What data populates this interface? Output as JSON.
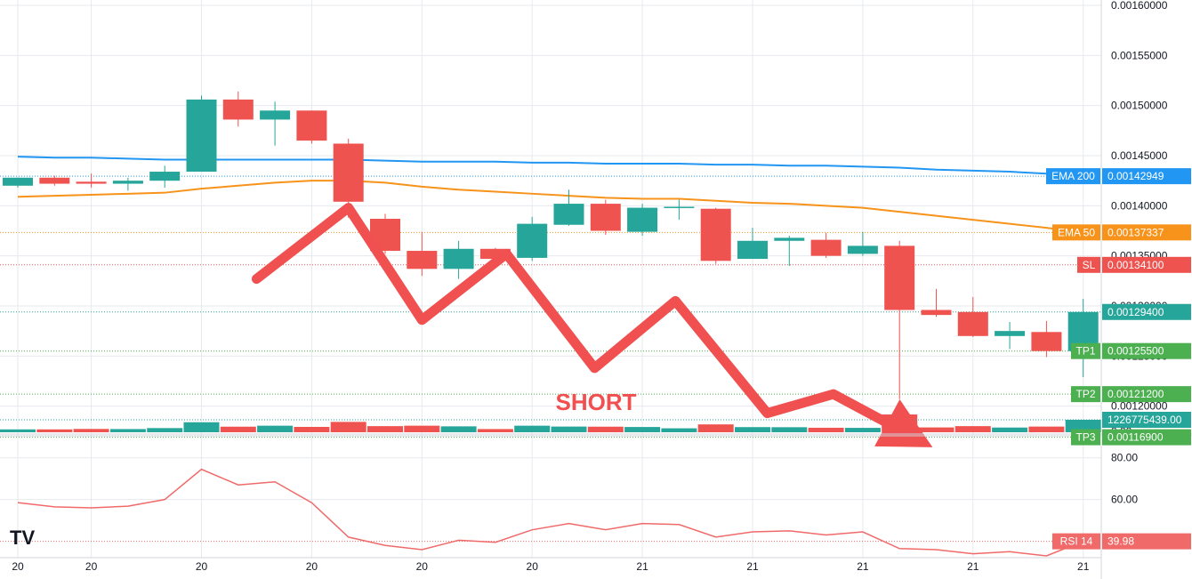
{
  "colors": {
    "up": "#26a69a",
    "down": "#ef5350",
    "ema200": "#2196f3",
    "ema50": "#f7931a",
    "sl": "#ef5350",
    "tp": "#4caf50",
    "last_price": "#26a69a",
    "rsi": "#f06a6a",
    "arrow": "#f05050",
    "grid": "#e6e9ee"
  },
  "watermark": "TV",
  "chart_data": {
    "type": "candlestick",
    "price_axis": {
      "ylim": [
        0.00115,
        0.0016
      ],
      "ticks": [
        "0.00160000",
        "0.00155000",
        "0.00150000",
        "0.00145000",
        "0.00140000",
        "0.00135000",
        "0.00130000",
        "0.00125000",
        "0.00120000"
      ]
    },
    "time_axis": {
      "tick_indices": [
        0,
        2,
        5,
        8,
        11,
        14,
        17,
        20,
        23,
        26,
        29
      ],
      "tick_labels": [
        "20",
        "20",
        "20",
        "20",
        "20",
        "20",
        "21",
        "21",
        "21",
        "21",
        "21"
      ]
    },
    "candles": [
      {
        "o": 0.00142,
        "h": 0.001428,
        "l": 0.001418,
        "c": 0.001428
      },
      {
        "o": 0.001428,
        "h": 0.00143,
        "l": 0.00142,
        "c": 0.001422
      },
      {
        "o": 0.001424,
        "h": 0.001432,
        "l": 0.001418,
        "c": 0.001422
      },
      {
        "o": 0.001422,
        "h": 0.001428,
        "l": 0.001415,
        "c": 0.001425
      },
      {
        "o": 0.001425,
        "h": 0.00144,
        "l": 0.001418,
        "c": 0.001434
      },
      {
        "o": 0.001434,
        "h": 0.00151,
        "l": 0.001434,
        "c": 0.001506
      },
      {
        "o": 0.001506,
        "h": 0.001514,
        "l": 0.001479,
        "c": 0.001486
      },
      {
        "o": 0.001486,
        "h": 0.001504,
        "l": 0.00146,
        "c": 0.001495
      },
      {
        "o": 0.001495,
        "h": 0.001495,
        "l": 0.001462,
        "c": 0.001465
      },
      {
        "o": 0.001462,
        "h": 0.001467,
        "l": 0.001388,
        "c": 0.001404
      },
      {
        "o": 0.001387,
        "h": 0.001392,
        "l": 0.001352,
        "c": 0.001355
      },
      {
        "o": 0.001355,
        "h": 0.001374,
        "l": 0.00133,
        "c": 0.001337
      },
      {
        "o": 0.001337,
        "h": 0.001365,
        "l": 0.001327,
        "c": 0.001357
      },
      {
        "o": 0.001357,
        "h": 0.001358,
        "l": 0.001345,
        "c": 0.001347
      },
      {
        "o": 0.001348,
        "h": 0.001389,
        "l": 0.001345,
        "c": 0.001382
      },
      {
        "o": 0.001381,
        "h": 0.001416,
        "l": 0.00138,
        "c": 0.001402
      },
      {
        "o": 0.001402,
        "h": 0.001406,
        "l": 0.001371,
        "c": 0.001375
      },
      {
        "o": 0.001374,
        "h": 0.001402,
        "l": 0.00137,
        "c": 0.001398
      },
      {
        "o": 0.001398,
        "h": 0.001406,
        "l": 0.001386,
        "c": 0.001399
      },
      {
        "o": 0.001397,
        "h": 0.001398,
        "l": 0.001342,
        "c": 0.001345
      },
      {
        "o": 0.001347,
        "h": 0.001378,
        "l": 0.001347,
        "c": 0.001365
      },
      {
        "o": 0.001365,
        "h": 0.00137,
        "l": 0.00134,
        "c": 0.001368
      },
      {
        "o": 0.001366,
        "h": 0.001373,
        "l": 0.001348,
        "c": 0.00135
      },
      {
        "o": 0.001352,
        "h": 0.001374,
        "l": 0.00135,
        "c": 0.00136
      },
      {
        "o": 0.00136,
        "h": 0.001365,
        "l": 0.001207,
        "c": 0.001296
      },
      {
        "o": 0.001296,
        "h": 0.001317,
        "l": 0.001289,
        "c": 0.001291
      },
      {
        "o": 0.001294,
        "h": 0.001309,
        "l": 0.001269,
        "c": 0.00127
      },
      {
        "o": 0.00127,
        "h": 0.001284,
        "l": 0.001257,
        "c": 0.001275
      },
      {
        "o": 0.001274,
        "h": 0.001285,
        "l": 0.001249,
        "c": 0.001255
      },
      {
        "o": 0.001255,
        "h": 0.001307,
        "l": 0.001229,
        "c": 0.001294
      }
    ],
    "volume_tag": "1226775439.00",
    "volume_axis_label": "0.00",
    "ema200": [
      0.001449,
      0.001448,
      0.001448,
      0.001447,
      0.001446,
      0.001446,
      0.001446,
      0.001446,
      0.001446,
      0.001446,
      0.001445,
      0.001444,
      0.001444,
      0.001444,
      0.001443,
      0.001443,
      0.001442,
      0.001442,
      0.001442,
      0.001441,
      0.001441,
      0.00144,
      0.00144,
      0.001439,
      0.001438,
      0.001436,
      0.001435,
      0.001434,
      0.001432,
      0.00142949
    ],
    "ema50": [
      0.001409,
      0.00141,
      0.001411,
      0.001412,
      0.001413,
      0.001417,
      0.00142,
      0.001423,
      0.001425,
      0.001425,
      0.001423,
      0.001419,
      0.001416,
      0.001414,
      0.001412,
      0.00141,
      0.001408,
      0.001407,
      0.001407,
      0.001405,
      0.001403,
      0.001402,
      0.0014,
      0.001398,
      0.001394,
      0.00139,
      0.001386,
      0.001382,
      0.001378,
      0.00137337
    ],
    "levels": [
      {
        "name": "EMA 200",
        "value_label": "0.00142949",
        "value": 0.00142949,
        "kind": "ema200"
      },
      {
        "name": "EMA 50",
        "value_label": "0.00137337",
        "value": 0.00137337,
        "kind": "ema50"
      },
      {
        "name": "SL",
        "value_label": "0.00134100",
        "value": 0.001341,
        "kind": "sl"
      },
      {
        "name": "",
        "value_label": "0.00129400",
        "value": 0.001294,
        "kind": "last_price"
      },
      {
        "name": "TP1",
        "value_label": "0.00125500",
        "value": 0.001255,
        "kind": "tp"
      },
      {
        "name": "TP2",
        "value_label": "0.00121200",
        "value": 0.001212,
        "kind": "tp"
      },
      {
        "name": "TP3",
        "value_label": "0.00116900",
        "value": 0.001169,
        "kind": "tp"
      }
    ],
    "annotation": {
      "text": "SHORT"
    },
    "short_path": [
      {
        "i": 6.5,
        "p": 0.001327
      },
      {
        "i": 9.0,
        "p": 0.001398
      },
      {
        "i": 11.0,
        "p": 0.001286
      },
      {
        "i": 13.3,
        "p": 0.001352
      },
      {
        "i": 15.7,
        "p": 0.001238
      },
      {
        "i": 17.9,
        "p": 0.001305
      },
      {
        "i": 20.4,
        "p": 0.001193
      },
      {
        "i": 22.2,
        "p": 0.001212
      },
      {
        "i": 24.9,
        "p": 0.001159
      }
    ],
    "rsi": {
      "name": "RSI 14",
      "value_label": "39.98",
      "ylim": [
        33.0,
        85.0
      ],
      "ticks": [
        "80.00",
        "60.00"
      ],
      "values": [
        58.5,
        56.5,
        56.0,
        56.8,
        60.0,
        74.5,
        67.0,
        68.5,
        58.5,
        42.0,
        38.0,
        36.0,
        40.5,
        39.5,
        45.5,
        48.5,
        45.5,
        48.5,
        48.0,
        42.0,
        44.5,
        45.0,
        43.0,
        44.5,
        36.5,
        36.0,
        34.0,
        35.0,
        33.0,
        39.98
      ]
    }
  }
}
